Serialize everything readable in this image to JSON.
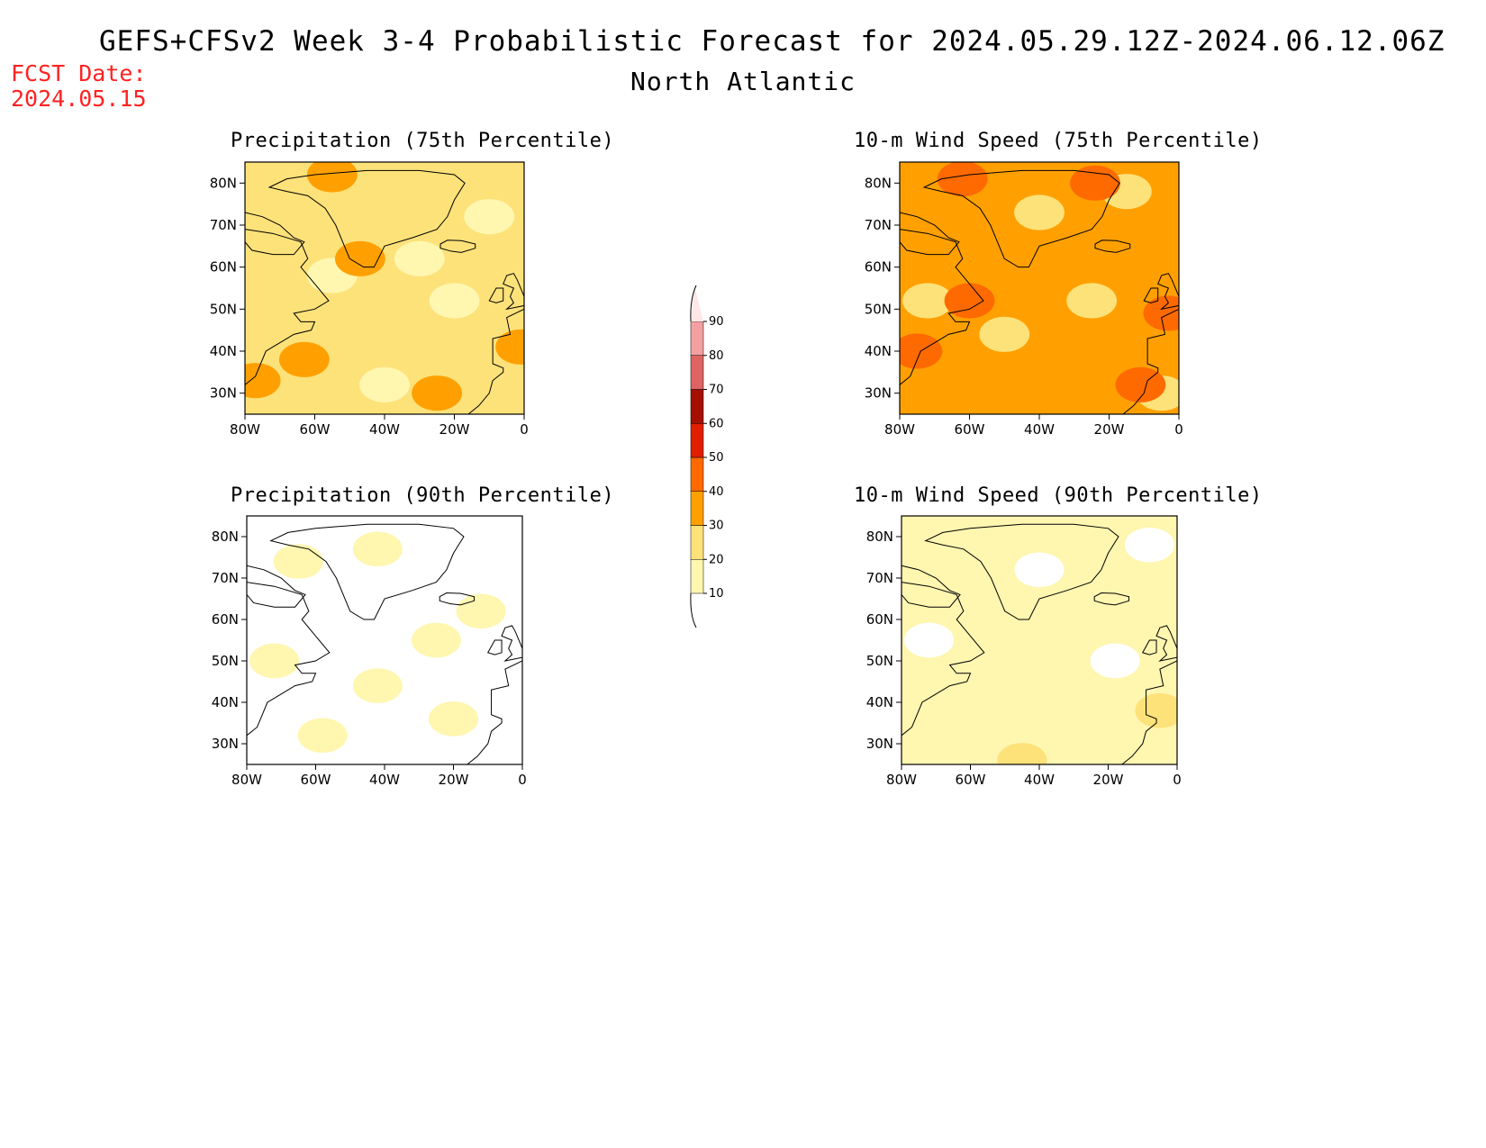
{
  "header": {
    "title": "GEFS+CFSv2 Week 3-4 Probabilistic Forecast for 2024.05.29.12Z-2024.06.12.06Z",
    "region": "North Atlantic",
    "fcst_label": "FCST Date:",
    "fcst_date": "2024.05.15"
  },
  "colors": {
    "c10": "#fff6b0",
    "c20": "#fde27a",
    "c30": "#ffa000",
    "c40": "#ff6a00",
    "c50": "#e01e00",
    "c60": "#a50f00",
    "c70": "#de6464",
    "c80": "#f4a0a0",
    "c90": "#ffe6e6",
    "coast": "#000000",
    "fcst_text": "#ff2222"
  },
  "chart_data": [
    {
      "type": "heatmap",
      "title": "Precipitation (75th Percentile)",
      "x_ticks": [
        "80W",
        "60W",
        "40W",
        "20W",
        "0"
      ],
      "y_ticks": [
        "80N",
        "70N",
        "60N",
        "50N",
        "40N",
        "30N"
      ],
      "xlim": [
        -80,
        0
      ],
      "ylim": [
        25,
        85
      ],
      "background_level": 20,
      "patches": [
        {
          "lon": -55,
          "lat": 58,
          "level": 10
        },
        {
          "lon": -30,
          "lat": 62,
          "level": 10
        },
        {
          "lon": -20,
          "lat": 52,
          "level": 10
        },
        {
          "lon": -40,
          "lat": 32,
          "level": 10
        },
        {
          "lon": -10,
          "lat": 72,
          "level": 10
        },
        {
          "lon": -55,
          "lat": 82,
          "level": 30
        },
        {
          "lon": -47,
          "lat": 62,
          "level": 30
        },
        {
          "lon": -25,
          "lat": 30,
          "level": 30
        },
        {
          "lon": -77,
          "lat": 33,
          "level": 30
        },
        {
          "lon": -63,
          "lat": 38,
          "level": 30
        },
        {
          "lon": -1,
          "lat": 41,
          "level": 30
        }
      ]
    },
    {
      "type": "heatmap",
      "title": "10-m Wind Speed (75th Percentile)",
      "x_ticks": [
        "80W",
        "60W",
        "40W",
        "20W",
        "0"
      ],
      "y_ticks": [
        "80N",
        "70N",
        "60N",
        "50N",
        "40N",
        "30N"
      ],
      "xlim": [
        -80,
        0
      ],
      "ylim": [
        25,
        85
      ],
      "background_level": 30,
      "patches": [
        {
          "lon": -40,
          "lat": 73,
          "level": 20
        },
        {
          "lon": -25,
          "lat": 52,
          "level": 20
        },
        {
          "lon": -50,
          "lat": 44,
          "level": 20
        },
        {
          "lon": -72,
          "lat": 52,
          "level": 20
        },
        {
          "lon": -5,
          "lat": 30,
          "level": 20
        },
        {
          "lon": -15,
          "lat": 78,
          "level": 20
        },
        {
          "lon": -62,
          "lat": 81,
          "level": 40
        },
        {
          "lon": -75,
          "lat": 40,
          "level": 40
        },
        {
          "lon": -60,
          "lat": 52,
          "level": 40
        },
        {
          "lon": -3,
          "lat": 49,
          "level": 40
        },
        {
          "lon": -24,
          "lat": 80,
          "level": 40
        },
        {
          "lon": -11,
          "lat": 32,
          "level": 40
        }
      ]
    },
    {
      "type": "heatmap",
      "title": "Precipitation (90th Percentile)",
      "x_ticks": [
        "80W",
        "60W",
        "40W",
        "20W",
        "0"
      ],
      "y_ticks": [
        "80N",
        "70N",
        "60N",
        "50N",
        "40N",
        "30N"
      ],
      "xlim": [
        -80,
        0
      ],
      "ylim": [
        25,
        85
      ],
      "background_level": 0,
      "patches": [
        {
          "lon": -65,
          "lat": 74,
          "level": 10
        },
        {
          "lon": -42,
          "lat": 77,
          "level": 10
        },
        {
          "lon": -72,
          "lat": 50,
          "level": 10
        },
        {
          "lon": -42,
          "lat": 44,
          "level": 10
        },
        {
          "lon": -20,
          "lat": 36,
          "level": 10
        },
        {
          "lon": -58,
          "lat": 32,
          "level": 10
        },
        {
          "lon": -12,
          "lat": 62,
          "level": 10
        },
        {
          "lon": -25,
          "lat": 55,
          "level": 10
        }
      ]
    },
    {
      "type": "heatmap",
      "title": "10-m Wind Speed (90th Percentile)",
      "x_ticks": [
        "80W",
        "60W",
        "40W",
        "20W",
        "0"
      ],
      "y_ticks": [
        "80N",
        "70N",
        "60N",
        "50N",
        "40N",
        "30N"
      ],
      "xlim": [
        -80,
        0
      ],
      "ylim": [
        25,
        85
      ],
      "background_level": 10,
      "patches": [
        {
          "lon": -40,
          "lat": 72,
          "level": 0
        },
        {
          "lon": -72,
          "lat": 55,
          "level": 0
        },
        {
          "lon": -18,
          "lat": 50,
          "level": 0
        },
        {
          "lon": -8,
          "lat": 78,
          "level": 0
        },
        {
          "lon": -5,
          "lat": 38,
          "level": 20
        },
        {
          "lon": -45,
          "lat": 26,
          "level": 20
        }
      ]
    }
  ],
  "colorbar": {
    "levels": [
      "10",
      "20",
      "30",
      "40",
      "50",
      "60",
      "70",
      "80",
      "90"
    ]
  }
}
